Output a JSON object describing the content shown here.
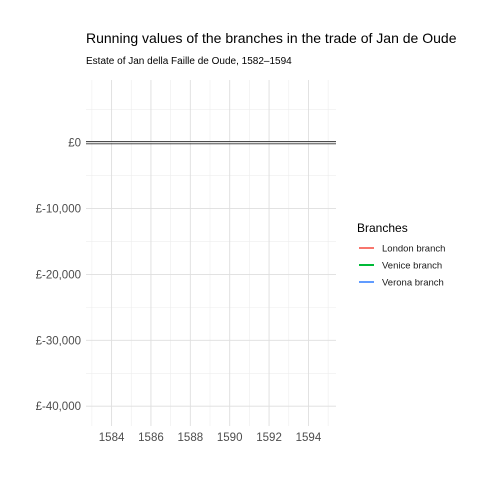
{
  "chart_data": {
    "type": "line",
    "title": "Running values of the branches in the trade of Jan de Oude",
    "subtitle": "Estate of Jan della Faille de Oude, 1582–1594",
    "xlabel": "",
    "ylabel": "",
    "xlim": [
      1582.7,
      1595.4
    ],
    "ylim": [
      -43000,
      9500
    ],
    "x_ticks": [
      1584,
      1586,
      1588,
      1590,
      1592,
      1594
    ],
    "y_ticks": [
      0,
      -10000,
      -20000,
      -30000,
      -40000
    ],
    "y_tick_labels": [
      "£0",
      "£-10,000",
      "£-20,000",
      "£-30,000",
      "£-40,000"
    ],
    "grid": true,
    "legend_title": "Branches",
    "legend_position": "right",
    "series": [
      {
        "name": "London branch",
        "color": "#F8766D",
        "x": [],
        "y": []
      },
      {
        "name": "Venice branch",
        "color": "#00BA38",
        "x": [],
        "y": []
      },
      {
        "name": "Verona branch",
        "color": "#619CFF",
        "x": [],
        "y": []
      }
    ]
  }
}
